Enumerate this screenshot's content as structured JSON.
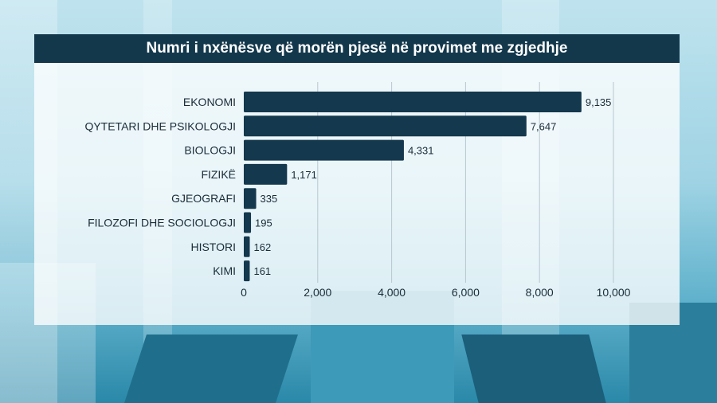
{
  "chart_data": {
    "type": "bar",
    "orientation": "horizontal",
    "title": "Numri i nxënësve që morën pjesë në provimet me zgjedhje",
    "categories": [
      "EKONOMI",
      "QYTETARI DHE PSIKOLOGJI",
      "BIOLOGJI",
      "FIZIKË",
      "GJEOGRAFI",
      "FILOZOFI DHE SOCIOLOGJI",
      "HISTORI",
      "KIMI"
    ],
    "values": [
      9135,
      7647,
      4331,
      1171,
      335,
      195,
      162,
      161
    ],
    "value_labels": [
      "9,135",
      "7,647",
      "4,331",
      "1,171",
      "335",
      "195",
      "162",
      "161"
    ],
    "xlim": [
      0,
      10000
    ],
    "xticks": [
      0,
      2000,
      4000,
      6000,
      8000,
      10000
    ],
    "xtick_labels": [
      "0",
      "2,000",
      "4,000",
      "6,000",
      "8,000",
      "10,000"
    ],
    "xlabel": "",
    "ylabel": "",
    "grid": true,
    "bar_color": "#14384d"
  }
}
